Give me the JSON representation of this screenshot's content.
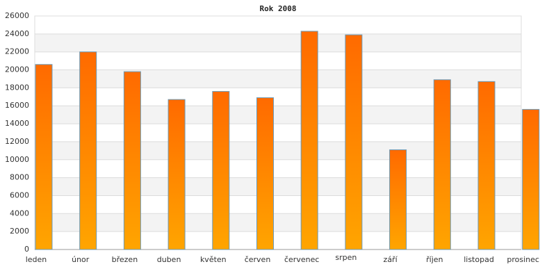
{
  "chart_data": {
    "type": "bar",
    "title": "Rok 2008",
    "categories": [
      "leden",
      "únor",
      "březen",
      "duben",
      "květen",
      "červen",
      "červenec",
      "srpen",
      "září",
      "říjen",
      "listopad",
      "prosinec"
    ],
    "values": [
      20600,
      22000,
      19800,
      16700,
      17600,
      16900,
      24300,
      23900,
      11100,
      18900,
      18700,
      15600
    ],
    "color": "#ff7f00",
    "ylim": [
      0,
      26000
    ],
    "yticks": [
      0,
      2000,
      4000,
      6000,
      8000,
      10000,
      12000,
      14000,
      16000,
      18000,
      20000,
      22000,
      24000,
      26000
    ],
    "grid": true
  }
}
